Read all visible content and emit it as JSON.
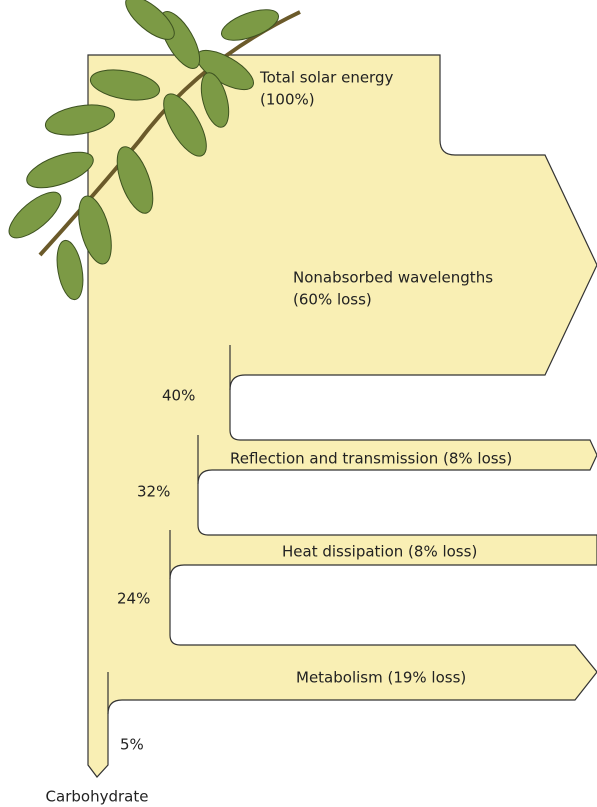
{
  "source": {
    "label": "Total solar energy",
    "share": "(100%)"
  },
  "flows": [
    {
      "label": "Nonabsorbed wavelengths",
      "loss": "(60% loss)"
    },
    {
      "label": "Reflection and transmission (8% loss)"
    },
    {
      "label": "Heat dissipation (8% loss)"
    },
    {
      "label": "Metabolism (19% loss)"
    }
  ],
  "remaining": [
    "40%",
    "32%",
    "24%",
    "5%"
  ],
  "product": "Carbohydrate"
}
